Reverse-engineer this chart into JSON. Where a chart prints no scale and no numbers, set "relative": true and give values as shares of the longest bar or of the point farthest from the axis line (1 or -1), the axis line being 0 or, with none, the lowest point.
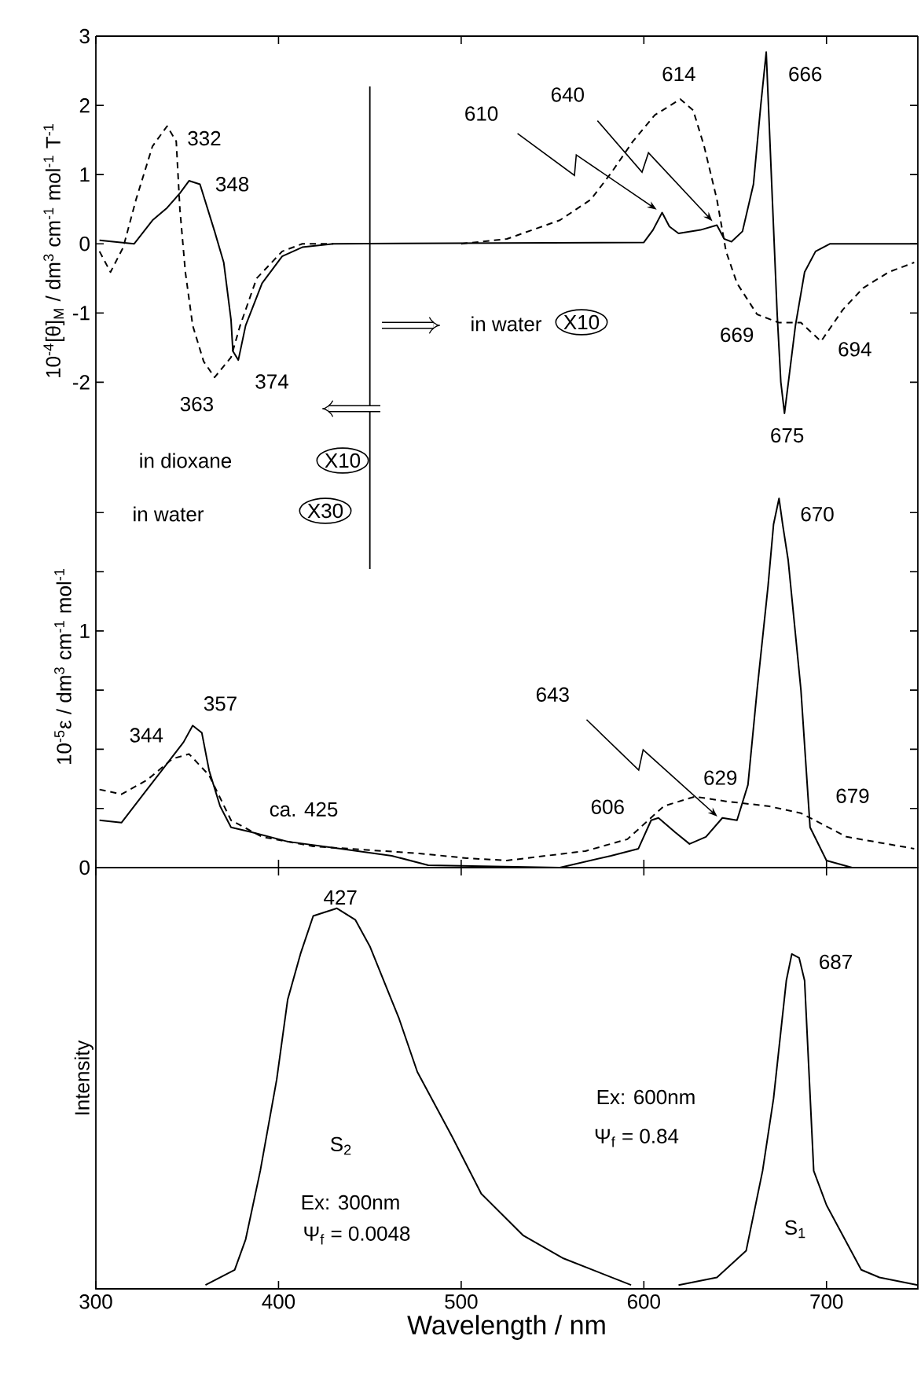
{
  "chart_data": [
    {
      "type": "line",
      "ylabel": "10$^{-4}$[θ]$_{M}$ / dm$^{3}$ cm$^{-1}$ mol$^{-1}$ T$^{-1}$",
      "xlim": [
        300,
        750
      ],
      "xticks": [
        300,
        400,
        500,
        600,
        700
      ],
      "ylim": [
        -3.2,
        3
      ],
      "yticks": [
        -2,
        -1,
        0,
        1,
        2,
        3
      ],
      "tick_labels": "y",
      "series": [
        {
          "color": "#000000",
          "line_style": "solid",
          "x": [
            302,
            321,
            331,
            339,
            346,
            351,
            357,
            365,
            370,
            374,
            375,
            378,
            382,
            391,
            402,
            413,
            430,
            600,
            605,
            610,
            614,
            619,
            631,
            640,
            644,
            648,
            654,
            660,
            664,
            667,
            670,
            673,
            675,
            677,
            683,
            688,
            694,
            702,
            750
          ],
          "values": [
            0.05,
            0,
            0.34,
            0.52,
            0.73,
            0.91,
            0.86,
            0.18,
            -0.27,
            -1.1,
            -1.55,
            -1.68,
            -1.18,
            -0.57,
            -0.18,
            -0.05,
            0,
            0.02,
            0.2,
            0.45,
            0.25,
            0.15,
            0.2,
            0.27,
            0.07,
            0.03,
            0.18,
            0.86,
            2.0,
            2.77,
            0.86,
            -1.02,
            -2.0,
            -2.45,
            -1.18,
            -0.41,
            -0.11,
            0,
            0
          ]
        },
        {
          "color": "#000000",
          "line_style": "dashed",
          "x": [
            302,
            308,
            315,
            322,
            331,
            339,
            344,
            346,
            349,
            353,
            359,
            365,
            374,
            379,
            388,
            402,
            413,
            430,
            470,
            500,
            525,
            554,
            571,
            582,
            594,
            606,
            620,
            627,
            633,
            640,
            645,
            651,
            662,
            674,
            686,
            697,
            709,
            720,
            734,
            748
          ],
          "values": [
            -0.11,
            -0.41,
            -0.05,
            0.64,
            1.41,
            1.7,
            1.48,
            0.5,
            -0.41,
            -1.18,
            -1.7,
            -1.93,
            -1.64,
            -1.18,
            -0.5,
            -0.11,
            0,
            0,
            null,
            0,
            0.07,
            0.34,
            0.64,
            1.02,
            1.48,
            1.86,
            2.09,
            1.93,
            1.41,
            0.64,
            -0.11,
            -0.57,
            -1.02,
            -1.14,
            -1.14,
            -1.41,
            -0.95,
            -0.64,
            -0.41,
            -0.27
          ]
        }
      ],
      "ref_lines": [
        {
          "axis": "x",
          "value": 450
        }
      ],
      "annotations": [
        "332",
        {
          "text": "348",
          "x": 348,
          "y": 0.93
        },
        {
          "text": "363",
          "x": 363,
          "y": -1.93
        },
        {
          "text": "374",
          "x": 374,
          "y": -1.65
        },
        {
          "text": "610",
          "x": 610,
          "y": 0.45
        },
        {
          "text": "640",
          "x": 640,
          "y": 0.27
        },
        {
          "text": "614",
          "x": 614,
          "y": 2.09
        },
        {
          "text": "666",
          "x": 666,
          "y": 2.77
        },
        {
          "text": "669",
          "x": 669,
          "y": -1.02
        },
        {
          "text": "694",
          "x": 694,
          "y": -1.41
        },
        {
          "text": "675",
          "x": 675,
          "y": -2.45
        },
        "in water",
        "X10",
        "in dioxane",
        "X10",
        "in water",
        "X30"
      ]
    },
    {
      "type": "line",
      "ylabel": "10$^{-5}$ε / dm$^{3}$ cm$^{-1}$ mol$^{-1}$",
      "xlim": [
        300,
        750
      ],
      "xticks": [
        300,
        400,
        500,
        600,
        700
      ],
      "ylim": [
        0,
        1.7
      ],
      "yticks": [
        0,
        {
          "value": 0.25,
          "label": null
        },
        {
          "value": 0.5,
          "label": null
        },
        {
          "value": 0.75,
          "label": null
        },
        1,
        {
          "value": 1.25,
          "label": null
        },
        {
          "value": 1.5,
          "label": null
        }
      ],
      "tick_labels": "y",
      "series": [
        {
          "color": "#000000",
          "line_style": "solid",
          "x": [
            302,
            314,
            325,
            336,
            348,
            353,
            358,
            362,
            368,
            374,
            385,
            405,
            434,
            462,
            482,
            554,
            582,
            597,
            604,
            608,
            617,
            625,
            634,
            643,
            651,
            657,
            662,
            668,
            671,
            674,
            676,
            679,
            686,
            691,
            700,
            714,
            750
          ],
          "values": [
            0.2,
            0.19,
            0.3,
            0.41,
            0.53,
            0.6,
            0.57,
            0.41,
            0.26,
            0.17,
            0.15,
            0.11,
            0.08,
            0.05,
            0.01,
            0,
            0.05,
            0.08,
            0.2,
            0.21,
            0.15,
            0.1,
            0.13,
            0.21,
            0.2,
            0.35,
            0.75,
            1.19,
            1.45,
            1.56,
            1.45,
            1.3,
            0.75,
            0.17,
            0.03,
            0,
            0
          ]
        },
        {
          "color": "#000000",
          "line_style": "dashed",
          "x": [
            302,
            314,
            328,
            342,
            351,
            362,
            374,
            391,
            419,
            477,
            503,
            525,
            568,
            591,
            611,
            628,
            645,
            668,
            686,
            711,
            748
          ],
          "values": [
            0.33,
            0.31,
            0.37,
            0.46,
            0.48,
            0.39,
            0.2,
            0.13,
            0.09,
            0.06,
            0.04,
            0.03,
            0.07,
            0.12,
            0.26,
            0.3,
            0.28,
            0.26,
            0.23,
            0.13,
            0.08
          ]
        }
      ],
      "annotations": [
        {
          "text": "344",
          "x": 344,
          "y": 0.46
        },
        {
          "text": "357",
          "x": 357,
          "y": 0.6
        },
        {
          "text": "ca. 425",
          "x": 425,
          "y": 0.12
        },
        {
          "text": "606",
          "x": 606,
          "y": 0.21
        },
        {
          "text": "629",
          "x": 629,
          "y": 0.3
        },
        {
          "text": "643",
          "x": 643,
          "y": 0.2
        },
        {
          "text": "670",
          "x": 670,
          "y": 1.56
        },
        {
          "text": "679",
          "x": 679,
          "y": 0.23
        }
      ]
    },
    {
      "type": "line",
      "relative": true,
      "xlabel": "Wavelength / nm",
      "ylabel": "Intensity",
      "xlim": [
        300,
        750
      ],
      "xticks": [
        300,
        400,
        500,
        600,
        700
      ],
      "tick_labels": "x",
      "series": [
        {
          "color": "#000000",
          "line_style": "solid",
          "x": [
            360,
            376,
            382,
            390,
            399,
            405,
            412,
            419,
            432,
            442,
            450,
            466,
            476,
            495,
            511,
            534,
            556,
            593
          ],
          "values": [
            0.01,
            0.05,
            0.13,
            0.31,
            0.55,
            0.76,
            0.88,
            0.98,
            1.0,
            0.97,
            0.9,
            0.71,
            0.57,
            0.4,
            0.25,
            0.14,
            0.08,
            0.01
          ]
        },
        {
          "color": "#000000",
          "line_style": "solid",
          "x": [
            619,
            640,
            656,
            665,
            671,
            678,
            681,
            685,
            688,
            693,
            700,
            719,
            729,
            750
          ],
          "values": [
            0.01,
            0.03,
            0.1,
            0.31,
            0.5,
            0.81,
            0.88,
            0.87,
            0.81,
            0.31,
            0.22,
            0.05,
            0.03,
            0.01
          ]
        }
      ],
      "annotations": [
        {
          "text": "427",
          "x": 427,
          "y": 1.0
        },
        {
          "text": "687",
          "x": 687,
          "y": 0.88
        },
        "S$_{2}$",
        "Ex: 300nm",
        "Ψ$_{f}$ = 0.0048",
        "Ex: 600nm",
        "Ψ$_{f}$ = 0.84",
        "S$_{1}$"
      ]
    }
  ]
}
